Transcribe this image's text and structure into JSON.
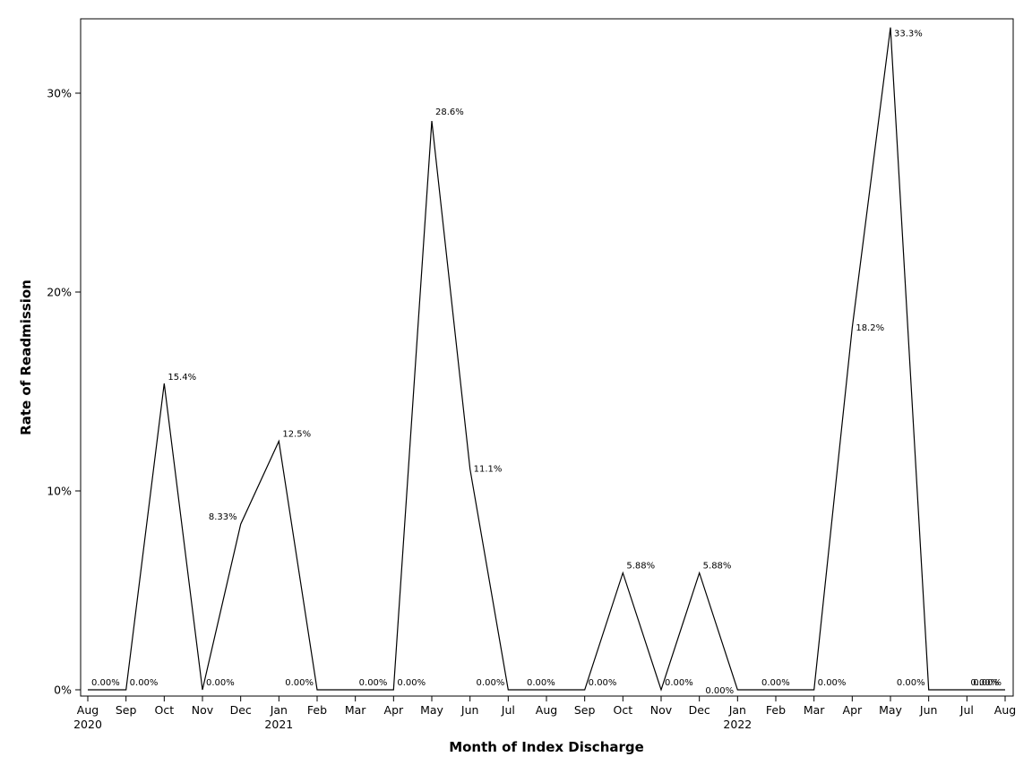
{
  "chart_data": {
    "type": "line",
    "title": "",
    "xlabel": "Month of Index Discharge",
    "ylabel": "Rate of Readmission",
    "ylim": [
      0,
      33.5
    ],
    "y_ticks": [
      0,
      10,
      20,
      30
    ],
    "y_tick_labels": [
      "0%",
      "10%",
      "20%",
      "30%"
    ],
    "grid": false,
    "legend": "none",
    "x_tick_labels": [
      {
        "month": "Aug",
        "year": "2020"
      },
      {
        "month": "Sep",
        "year": ""
      },
      {
        "month": "Oct",
        "year": ""
      },
      {
        "month": "Nov",
        "year": ""
      },
      {
        "month": "Dec",
        "year": ""
      },
      {
        "month": "Jan",
        "year": "2021"
      },
      {
        "month": "Feb",
        "year": ""
      },
      {
        "month": "Mar",
        "year": ""
      },
      {
        "month": "Apr",
        "year": ""
      },
      {
        "month": "May",
        "year": ""
      },
      {
        "month": "Jun",
        "year": ""
      },
      {
        "month": "Jul",
        "year": ""
      },
      {
        "month": "Aug",
        "year": ""
      },
      {
        "month": "Sep",
        "year": ""
      },
      {
        "month": "Oct",
        "year": ""
      },
      {
        "month": "Nov",
        "year": ""
      },
      {
        "month": "Dec",
        "year": ""
      },
      {
        "month": "Jan",
        "year": "2022"
      },
      {
        "month": "Feb",
        "year": ""
      },
      {
        "month": "Mar",
        "year": ""
      },
      {
        "month": "Apr",
        "year": ""
      },
      {
        "month": "May",
        "year": ""
      },
      {
        "month": "Jun",
        "year": ""
      },
      {
        "month": "Jul",
        "year": ""
      },
      {
        "month": "Aug",
        "year": ""
      }
    ],
    "series": [
      {
        "values": [
          0,
          0,
          15.4,
          0,
          8.33,
          12.5,
          0,
          0,
          0,
          28.6,
          11.1,
          0,
          0,
          0,
          5.88,
          0,
          5.88,
          0,
          0,
          0,
          18.2,
          33.3,
          0,
          0,
          0
        ],
        "labels": [
          "0.00%",
          "0.00%",
          "15.4%",
          "0.00%",
          "8.33%",
          "12.5%",
          "0.00%",
          "0.00%",
          "0.00%",
          "28.6%",
          "11.1%",
          "0.00%",
          "0.00%",
          "0.00%",
          "5.88%",
          "0.00%",
          "5.88%",
          "0.00%",
          "0.00%",
          "0.00%",
          "18.2%",
          "33.3%",
          "0.00%",
          "0.00%",
          "0.00%"
        ]
      }
    ],
    "colors": {
      "line": "#000000",
      "axis": "#000000",
      "background": "#ffffff"
    }
  }
}
